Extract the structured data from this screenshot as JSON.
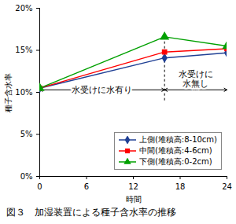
{
  "chart_data": {
    "type": "line",
    "title": "図３　加湿装置による種子含水率の推移",
    "x_label": "時間",
    "y_label": "種子含水率",
    "x": [
      0,
      16,
      24
    ],
    "series": [
      {
        "name": "上側(堆積高:8-10cm)",
        "color": "#1f3f94",
        "marker": "diamond",
        "values": [
          10.5,
          14.1,
          14.7
        ]
      },
      {
        "name": "中間(堆積高:4-6cm)",
        "color": "#ff0000",
        "marker": "square",
        "values": [
          10.5,
          14.8,
          15.2
        ]
      },
      {
        "name": "下側(堆積高:0-2cm)",
        "color": "#00a000",
        "marker": "triangle",
        "values": [
          10.5,
          16.6,
          15.5
        ]
      }
    ],
    "xlim": [
      0,
      24
    ],
    "xticks": [
      0,
      6,
      12,
      18,
      24
    ],
    "ylim": [
      0,
      20
    ],
    "yticks": [
      {
        "value": 0,
        "label": "0%"
      },
      {
        "value": 5,
        "label": "5%"
      },
      {
        "value": 10,
        "label": "10%"
      },
      {
        "value": 15,
        "label": "15%"
      },
      {
        "value": 20,
        "label": "20%"
      }
    ],
    "grid": false,
    "legend": "lower right",
    "annotations": [
      "水受けに水有り",
      "水受けに\n水無し"
    ]
  }
}
